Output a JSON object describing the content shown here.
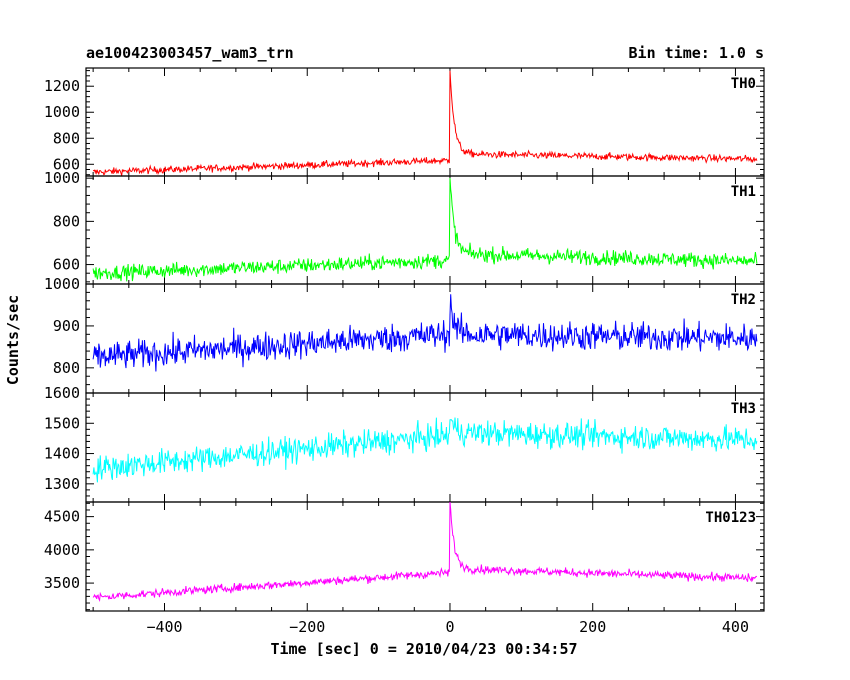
{
  "header": {
    "title": "ae100423003457_wam3_trn",
    "bin_time": "Bin time: 1.0 s"
  },
  "chart_data": {
    "type": "line",
    "xlabel": "Time [sec] 0 = 2010/04/23 00:34:57",
    "ylabel": "Counts/sec",
    "xlim": [
      -510,
      440
    ],
    "x_ticks": [
      -400,
      -200,
      0,
      200,
      400
    ],
    "x_tick_labels": [
      "−400",
      "−200",
      "0",
      "200",
      "400"
    ],
    "panels": [
      {
        "name": "TH0",
        "color": "#ff0000",
        "ylim": [
          510,
          1340
        ],
        "yticks": [
          600,
          800,
          1000,
          1200
        ],
        "model": {
          "pre_start": 540,
          "pre_end": 630,
          "noise": 35,
          "peak": 1340,
          "decay_to": 680,
          "post_end": 640
        }
      },
      {
        "name": "TH1",
        "color": "#00ff00",
        "ylim": [
          510,
          1010
        ],
        "yticks": [
          600,
          800,
          1000
        ],
        "model": {
          "pre_start": 560,
          "pre_end": 620,
          "noise": 45,
          "peak": 1000,
          "decay_to": 650,
          "post_end": 615
        }
      },
      {
        "name": "TH2",
        "color": "#0000ff",
        "ylim": [
          740,
          1000
        ],
        "yticks": [
          800,
          900,
          1000
        ],
        "model": {
          "pre_start": 825,
          "pre_end": 880,
          "noise": 45,
          "peak": 960,
          "decay_to": 880,
          "post_end": 870
        }
      },
      {
        "name": "TH3",
        "color": "#00ffff",
        "ylim": [
          1240,
          1600
        ],
        "yticks": [
          1300,
          1400,
          1500,
          1600
        ],
        "model": {
          "pre_start": 1350,
          "pre_end": 1460,
          "noise": 55,
          "peak": 1520,
          "decay_to": 1470,
          "post_end": 1445
        }
      },
      {
        "name": "TH0123",
        "color": "#ff00ff",
        "ylim": [
          3080,
          4720
        ],
        "yticks": [
          3500,
          4000,
          4500
        ],
        "model": {
          "pre_start": 3280,
          "pre_end": 3660,
          "noise": 80,
          "peak": 4720,
          "decay_to": 3720,
          "post_end": 3570
        }
      }
    ]
  }
}
